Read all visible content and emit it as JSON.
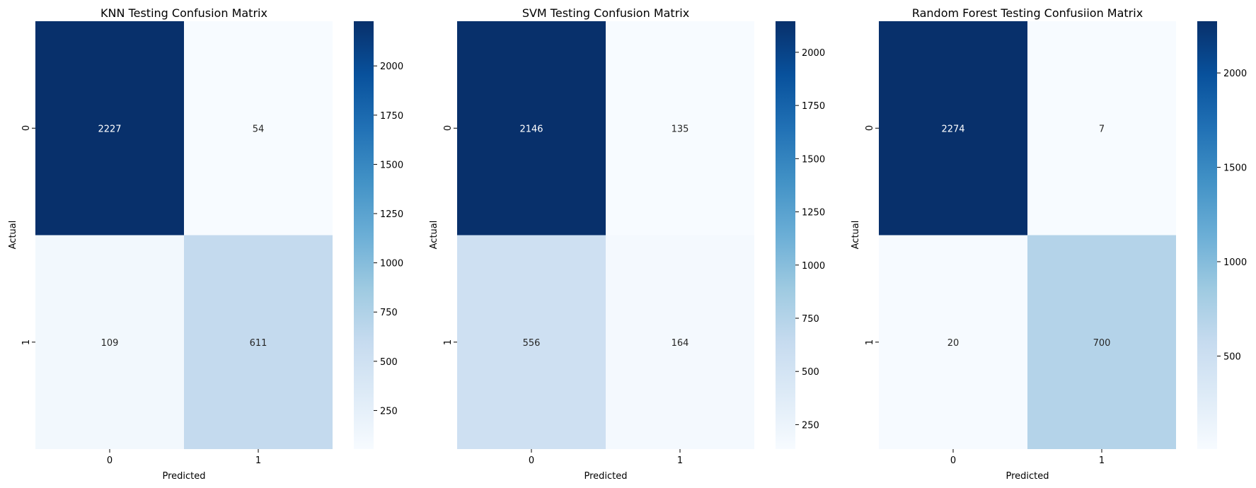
{
  "chart_data": [
    {
      "type": "heatmap",
      "title": "KNN Testing Confusion Matrix",
      "xlabel": "Predicted",
      "ylabel": "Actual",
      "x_categories": [
        "0",
        "1"
      ],
      "y_categories": [
        "0",
        "1"
      ],
      "values": [
        [
          2227,
          54
        ],
        [
          109,
          611
        ]
      ],
      "colormap": "Blues",
      "colorbar_ticks": [
        250,
        500,
        750,
        1000,
        1250,
        1500,
        1750,
        2000
      ],
      "colorbar_ticklabels": [
        "250",
        "500",
        "750",
        "1000",
        "1250",
        "1500",
        "1750",
        "2000"
      ]
    },
    {
      "type": "heatmap",
      "title": "SVM Testing Confusion Matrix",
      "xlabel": "Predicted",
      "ylabel": "Actual",
      "x_categories": [
        "0",
        "1"
      ],
      "y_categories": [
        "0",
        "1"
      ],
      "values": [
        [
          2146,
          135
        ],
        [
          556,
          164
        ]
      ],
      "colormap": "Blues",
      "colorbar_ticks": [
        250,
        500,
        750,
        1000,
        1250,
        1500,
        1750,
        2000
      ],
      "colorbar_ticklabels": [
        "250",
        "500",
        "750",
        "1000",
        "1250",
        "1500",
        "1750",
        "2000"
      ]
    },
    {
      "type": "heatmap",
      "title": "Random Forest Testing Confusiion Matrix",
      "xlabel": "Predicted",
      "ylabel": "Actual",
      "x_categories": [
        "0",
        "1"
      ],
      "y_categories": [
        "0",
        "1"
      ],
      "values": [
        [
          2274,
          7
        ],
        [
          20,
          700
        ]
      ],
      "colormap": "Blues",
      "colorbar_ticks": [
        500,
        1000,
        1500,
        2000
      ],
      "colorbar_ticklabels": [
        "500",
        "1000",
        "1500",
        "2000"
      ]
    }
  ],
  "colors": {
    "blues_stops": [
      "#f7fbff",
      "#deebf7",
      "#c6dbef",
      "#9ecae1",
      "#6baed6",
      "#4292c6",
      "#2171b5",
      "#08519c",
      "#08306b"
    ],
    "text_on_dark": "#ffffff",
    "text_on_light": "#262626"
  }
}
